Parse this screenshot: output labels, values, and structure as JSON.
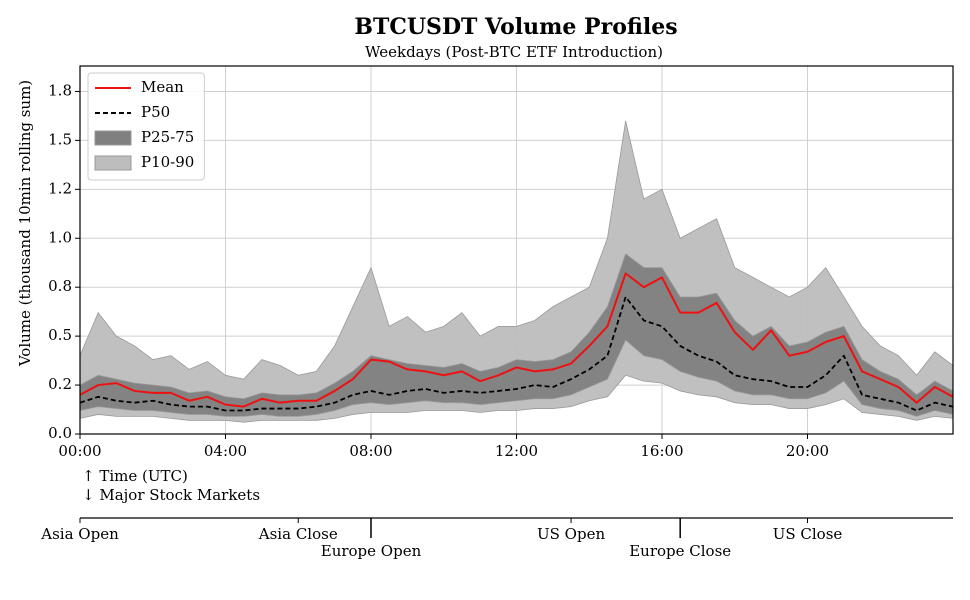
{
  "chart_data": {
    "type": "band-line",
    "title": "BTCUSDT Volume Profiles",
    "subtitle": "Weekdays (Post-BTC ETF Introduction)",
    "ylabel": "Volume (thousand 10min rolling sum)",
    "xlabel": [
      "↑ Time (UTC)",
      "↓ Major Stock Markets"
    ],
    "x": [
      0,
      0.5,
      1,
      1.5,
      2,
      2.5,
      3,
      3.5,
      4,
      4.5,
      5,
      5.5,
      6,
      6.5,
      7,
      7.5,
      8,
      8.5,
      9,
      9.5,
      10,
      10.5,
      11,
      11.5,
      12,
      12.5,
      13,
      13.5,
      14,
      14.5,
      15,
      15.5,
      16,
      16.5,
      17,
      17.5,
      18,
      18.5,
      19,
      19.5,
      20,
      20.5,
      21,
      21.5,
      22,
      22.5,
      23,
      23.5,
      24
    ],
    "xlim": [
      0,
      24
    ],
    "xticks": [
      {
        "value": 0,
        "label": "00:00"
      },
      {
        "value": 4,
        "label": "04:00"
      },
      {
        "value": 8,
        "label": "08:00"
      },
      {
        "value": 12,
        "label": "12:00"
      },
      {
        "value": 16,
        "label": "16:00"
      },
      {
        "value": 20,
        "label": "20:00"
      }
    ],
    "ylim": [
      0,
      1.88
    ],
    "yticks": [
      {
        "value": 0,
        "label": "0.0"
      },
      {
        "value": 0.25,
        "label": "0.2"
      },
      {
        "value": 0.5,
        "label": "0.5"
      },
      {
        "value": 0.75,
        "label": "0.8"
      },
      {
        "value": 1.0,
        "label": "1.0"
      },
      {
        "value": 1.25,
        "label": "1.2"
      },
      {
        "value": 1.5,
        "label": "1.5"
      },
      {
        "value": 1.75,
        "label": "1.8"
      }
    ],
    "grid": true,
    "legend": "upper left",
    "series": [
      {
        "name": "Mean",
        "kind": "line",
        "color": "#ee1111",
        "values": [
          0.2,
          0.25,
          0.26,
          0.22,
          0.21,
          0.21,
          0.17,
          0.19,
          0.15,
          0.14,
          0.18,
          0.16,
          0.17,
          0.17,
          0.22,
          0.28,
          0.38,
          0.37,
          0.33,
          0.32,
          0.3,
          0.32,
          0.27,
          0.3,
          0.34,
          0.32,
          0.33,
          0.36,
          0.45,
          0.55,
          0.82,
          0.75,
          0.8,
          0.62,
          0.62,
          0.67,
          0.52,
          0.43,
          0.53,
          0.4,
          0.42,
          0.47,
          0.5,
          0.32,
          0.28,
          0.24,
          0.16,
          0.24,
          0.19
        ]
      },
      {
        "name": "P50",
        "kind": "line",
        "dashed": true,
        "color": "#000000",
        "values": [
          0.16,
          0.19,
          0.17,
          0.16,
          0.17,
          0.15,
          0.14,
          0.14,
          0.12,
          0.12,
          0.13,
          0.13,
          0.13,
          0.14,
          0.16,
          0.2,
          0.22,
          0.2,
          0.22,
          0.23,
          0.21,
          0.22,
          0.21,
          0.22,
          0.23,
          0.25,
          0.24,
          0.28,
          0.33,
          0.4,
          0.7,
          0.58,
          0.55,
          0.45,
          0.4,
          0.37,
          0.3,
          0.28,
          0.27,
          0.24,
          0.24,
          0.3,
          0.4,
          0.2,
          0.18,
          0.16,
          0.12,
          0.16,
          0.14
        ]
      },
      {
        "name": "P25-75",
        "kind": "band",
        "color": "#808080",
        "lower": [
          0.12,
          0.14,
          0.13,
          0.12,
          0.12,
          0.11,
          0.1,
          0.1,
          0.09,
          0.09,
          0.1,
          0.09,
          0.09,
          0.1,
          0.12,
          0.15,
          0.16,
          0.15,
          0.16,
          0.17,
          0.16,
          0.16,
          0.15,
          0.16,
          0.17,
          0.18,
          0.18,
          0.2,
          0.24,
          0.28,
          0.48,
          0.4,
          0.38,
          0.32,
          0.29,
          0.27,
          0.22,
          0.2,
          0.2,
          0.18,
          0.18,
          0.21,
          0.27,
          0.15,
          0.13,
          0.12,
          0.09,
          0.12,
          0.1
        ],
        "upper": [
          0.25,
          0.3,
          0.28,
          0.26,
          0.25,
          0.24,
          0.21,
          0.22,
          0.19,
          0.18,
          0.21,
          0.2,
          0.2,
          0.21,
          0.26,
          0.32,
          0.4,
          0.38,
          0.36,
          0.35,
          0.34,
          0.36,
          0.32,
          0.34,
          0.38,
          0.37,
          0.38,
          0.42,
          0.52,
          0.65,
          0.92,
          0.85,
          0.85,
          0.7,
          0.7,
          0.72,
          0.58,
          0.5,
          0.55,
          0.45,
          0.47,
          0.52,
          0.55,
          0.38,
          0.32,
          0.28,
          0.2,
          0.27,
          0.22
        ]
      },
      {
        "name": "P10-90",
        "kind": "band",
        "color": "#bdbdbd",
        "lower": [
          0.08,
          0.1,
          0.09,
          0.09,
          0.09,
          0.08,
          0.07,
          0.07,
          0.07,
          0.06,
          0.07,
          0.07,
          0.07,
          0.07,
          0.08,
          0.1,
          0.11,
          0.11,
          0.11,
          0.12,
          0.12,
          0.12,
          0.11,
          0.12,
          0.12,
          0.13,
          0.13,
          0.14,
          0.17,
          0.19,
          0.3,
          0.27,
          0.26,
          0.22,
          0.2,
          0.19,
          0.16,
          0.15,
          0.15,
          0.13,
          0.13,
          0.15,
          0.18,
          0.11,
          0.1,
          0.09,
          0.07,
          0.09,
          0.08
        ],
        "upper": [
          0.4,
          0.62,
          0.5,
          0.45,
          0.38,
          0.4,
          0.33,
          0.37,
          0.3,
          0.28,
          0.38,
          0.35,
          0.3,
          0.32,
          0.45,
          0.65,
          0.85,
          0.55,
          0.6,
          0.52,
          0.55,
          0.62,
          0.5,
          0.55,
          0.55,
          0.58,
          0.65,
          0.7,
          0.75,
          1.0,
          1.6,
          1.2,
          1.25,
          1.0,
          1.05,
          1.1,
          0.85,
          0.8,
          0.75,
          0.7,
          0.75,
          0.85,
          0.7,
          0.55,
          0.45,
          0.4,
          0.3,
          0.42,
          0.35
        ]
      }
    ],
    "market_axis": {
      "ticks": [
        {
          "value": 0,
          "label": "Asia Open"
        },
        {
          "value": 6,
          "label": "Asia Close"
        },
        {
          "value": 8,
          "label": "Europe Open"
        },
        {
          "value": 13.5,
          "label": "US Open"
        },
        {
          "value": 16.5,
          "label": "Europe Close"
        },
        {
          "value": 20,
          "label": "US Close"
        }
      ]
    }
  }
}
